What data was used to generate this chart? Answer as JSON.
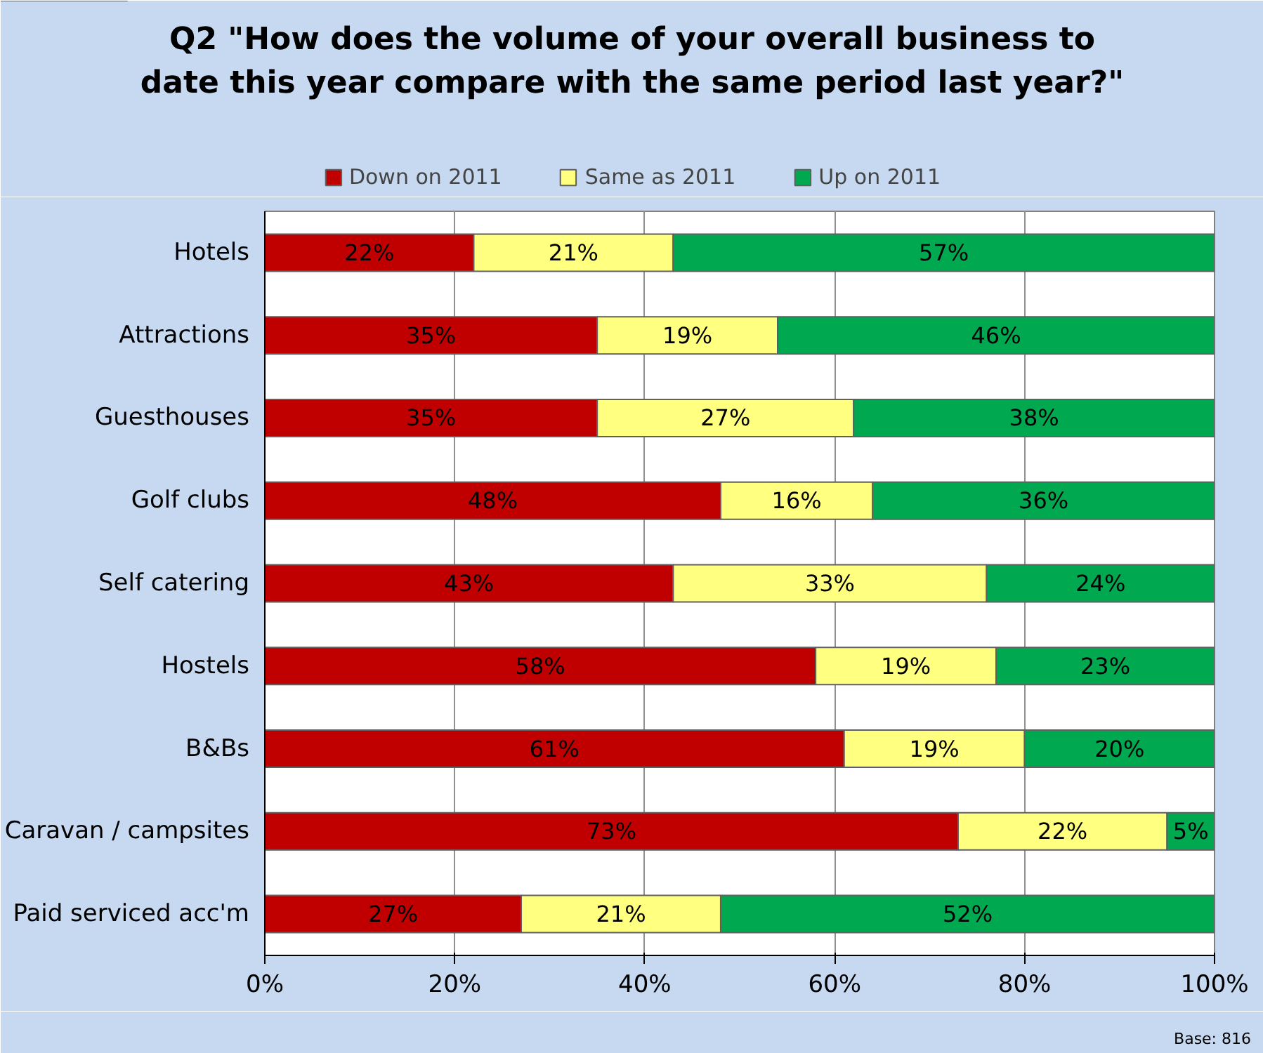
{
  "chart_data": {
    "type": "bar",
    "orientation": "horizontal",
    "stacked": true,
    "title": "Q2 \"How does the volume of your overall business to\ndate this year compare with the same period last year?\"",
    "categories": [
      "Hotels",
      "Attractions",
      "Guesthouses",
      "Golf clubs",
      "Self catering",
      "Hostels",
      "B&Bs",
      "Caravan / campsites",
      "Paid serviced acc'm"
    ],
    "series": [
      {
        "name": "Down on 2011",
        "color": "#c00000",
        "values": [
          22,
          35,
          35,
          48,
          43,
          58,
          61,
          73,
          27
        ],
        "value_labels": [
          "22%",
          "35%",
          "35%",
          "48%",
          "43%",
          "58%",
          "61%",
          "73%",
          "27%"
        ]
      },
      {
        "name": "Same as 2011",
        "color": "#ffff80",
        "values": [
          21,
          19,
          27,
          16,
          33,
          19,
          19,
          22,
          21
        ],
        "value_labels": [
          "21%",
          "19%",
          "27%",
          "16%",
          "33%",
          "19%",
          "19%",
          "22%",
          "21%"
        ]
      },
      {
        "name": "Up on 2011",
        "color": "#00a850",
        "values": [
          57,
          46,
          38,
          36,
          24,
          23,
          20,
          5,
          52
        ],
        "value_labels": [
          "57%",
          "46%",
          "38%",
          "36%",
          "24%",
          "23%",
          "20%",
          "5%",
          "52%"
        ]
      }
    ],
    "xlim": [
      0,
      100
    ],
    "xticks": [
      {
        "value": 0,
        "label": "0%"
      },
      {
        "value": 20,
        "label": "20%"
      },
      {
        "value": 40,
        "label": "40%"
      },
      {
        "value": 60,
        "label": "60%"
      },
      {
        "value": 80,
        "label": "80%"
      },
      {
        "value": 100,
        "label": "100%"
      }
    ],
    "grid": "x",
    "legend": "top",
    "annotations": [
      "Base: 816"
    ]
  }
}
